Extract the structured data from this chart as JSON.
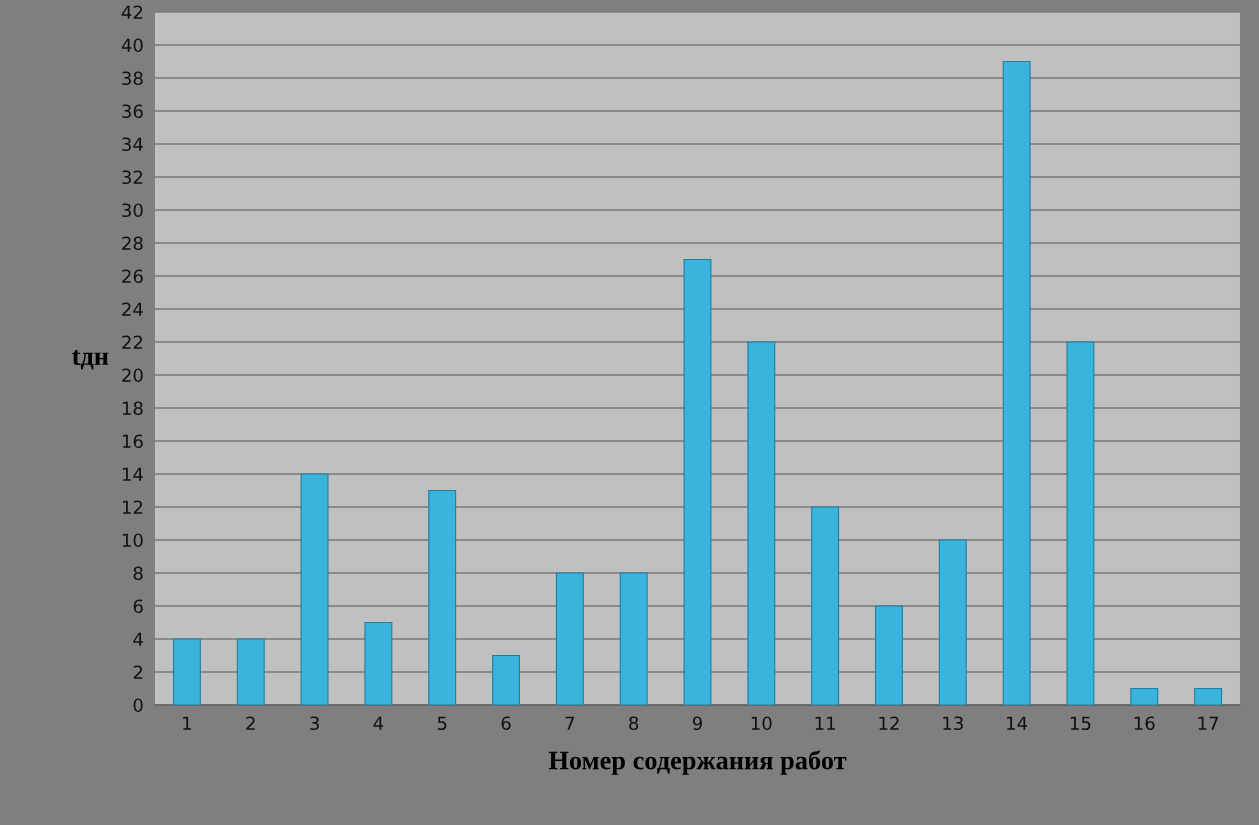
{
  "chart_data": {
    "type": "bar",
    "xlabel": "Номер содержания работ",
    "ylabel": "tдн",
    "categories": [
      "1",
      "2",
      "3",
      "4",
      "5",
      "6",
      "7",
      "8",
      "9",
      "10",
      "11",
      "12",
      "13",
      "14",
      "15",
      "16",
      "17"
    ],
    "values": [
      4,
      4,
      14,
      5,
      13,
      3,
      8,
      8,
      27,
      22,
      12,
      6,
      10,
      39,
      22,
      1,
      1
    ],
    "color": "#3ab4dc",
    "ylim": [
      0,
      42
    ],
    "yticks": [
      0,
      2,
      4,
      6,
      8,
      10,
      12,
      14,
      16,
      18,
      20,
      22,
      24,
      26,
      28,
      30,
      32,
      34,
      36,
      38,
      40,
      42
    ],
    "grid": "y",
    "legend": false
  }
}
